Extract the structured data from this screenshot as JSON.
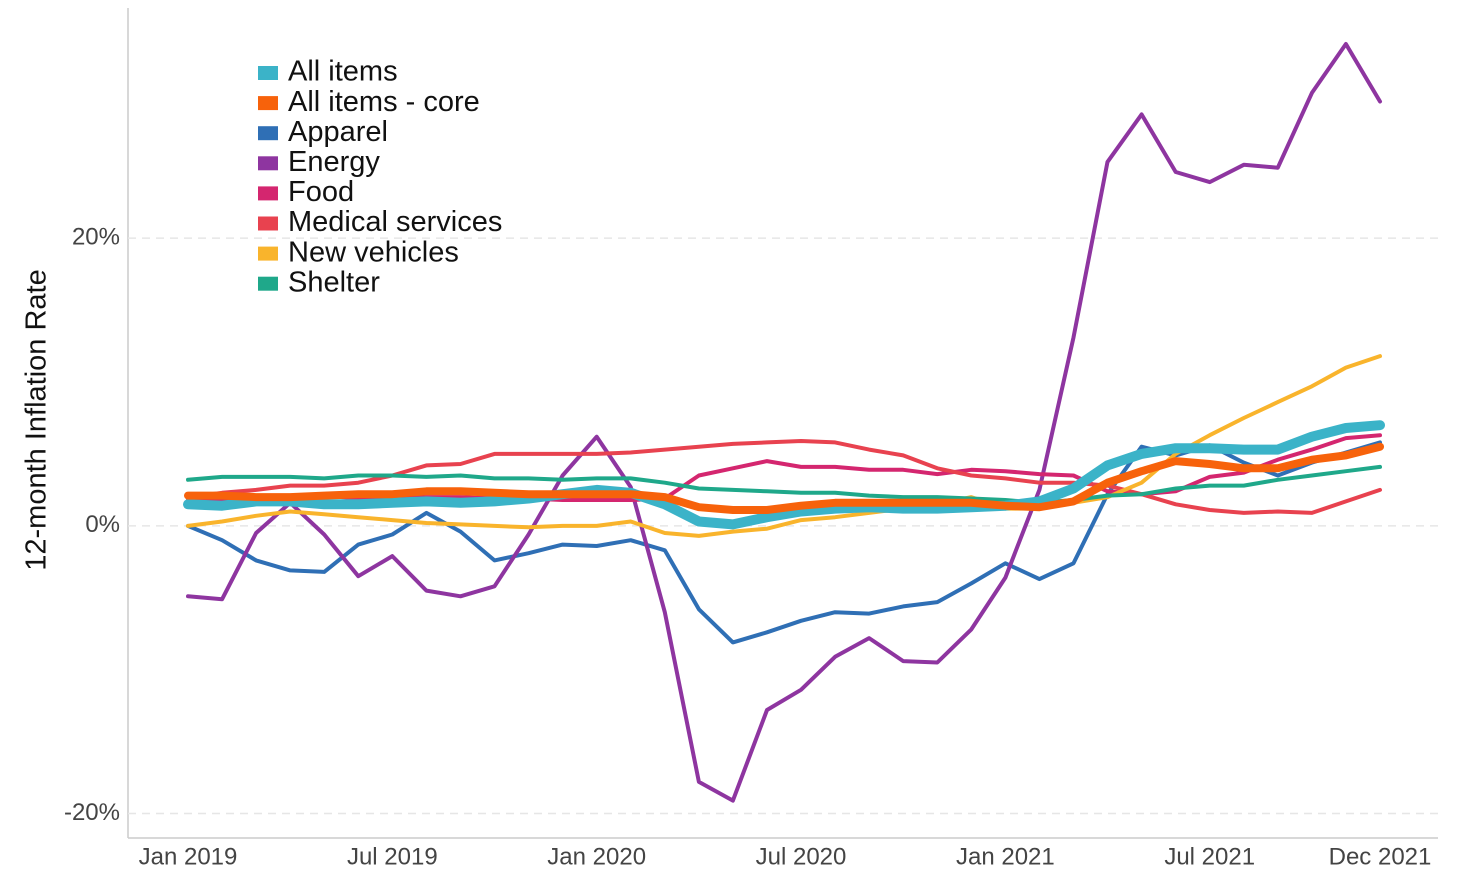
{
  "chart_data": {
    "type": "line",
    "y_label": "12-month Inflation Rate",
    "categories": [
      "Jan 2019",
      null,
      null,
      null,
      null,
      null,
      "Jul 2019",
      null,
      null,
      null,
      null,
      null,
      "Jan 2020",
      null,
      null,
      null,
      null,
      null,
      "Jul 2020",
      null,
      null,
      null,
      null,
      null,
      "Jan 2021",
      null,
      null,
      null,
      null,
      null,
      "Jul 2021",
      null,
      null,
      null,
      null,
      "Dec 2021"
    ],
    "series": [
      {
        "name": "All items",
        "color": "#3bb3c8",
        "values": [
          1.5,
          1.4,
          1.7,
          1.7,
          1.5,
          1.5,
          1.6,
          1.7,
          1.6,
          1.7,
          1.9,
          2.2,
          2.5,
          2.3,
          1.5,
          0.3,
          0.1,
          0.6,
          1.0,
          1.2,
          1.3,
          1.2,
          1.2,
          1.3,
          1.4,
          1.7,
          2.6,
          4.2,
          5.0,
          5.4,
          5.4,
          5.3,
          5.3,
          6.2,
          6.8,
          7.0
        ]
      },
      {
        "name": "All items - core",
        "color": "#f7620b",
        "values": [
          2.1,
          2.1,
          2.0,
          2.0,
          2.1,
          2.2,
          2.2,
          2.4,
          2.4,
          2.3,
          2.2,
          2.2,
          2.2,
          2.2,
          2.0,
          1.3,
          1.1,
          1.1,
          1.4,
          1.6,
          1.6,
          1.6,
          1.6,
          1.6,
          1.4,
          1.3,
          1.7,
          3.0,
          3.8,
          4.5,
          4.3,
          4.0,
          4.0,
          4.6,
          4.9,
          5.5
        ]
      },
      {
        "name": "Apparel",
        "color": "#2f6fb5",
        "values": [
          0.0,
          -1.0,
          -2.4,
          -3.1,
          -3.2,
          -1.3,
          -0.6,
          0.9,
          -0.4,
          -2.4,
          -1.9,
          -1.3,
          -1.4,
          -1.0,
          -1.7,
          -5.8,
          -8.1,
          -7.4,
          -6.6,
          -6.0,
          -6.1,
          -5.6,
          -5.3,
          -4.0,
          -2.6,
          -3.7,
          -2.6,
          2.2,
          5.5,
          4.9,
          5.6,
          4.4,
          3.5,
          4.4,
          5.1,
          5.8
        ]
      },
      {
        "name": "Energy",
        "color": "#8e35a0",
        "values": [
          -4.9,
          -5.1,
          -0.5,
          1.6,
          -0.6,
          -3.5,
          -2.1,
          -4.5,
          -4.9,
          -4.2,
          -0.6,
          3.5,
          6.2,
          2.7,
          -6.0,
          -17.8,
          -19.1,
          -12.8,
          -11.4,
          -9.1,
          -7.8,
          -9.4,
          -9.5,
          -7.2,
          -3.6,
          2.5,
          13.1,
          25.3,
          28.6,
          24.6,
          23.9,
          25.1,
          24.9,
          30.1,
          33.5,
          29.5
        ]
      },
      {
        "name": "Food",
        "color": "#d4266f",
        "values": [
          1.8,
          1.8,
          1.9,
          2.0,
          2.1,
          1.9,
          1.9,
          2.0,
          2.0,
          1.9,
          1.9,
          1.8,
          1.8,
          1.8,
          1.9,
          3.5,
          4.0,
          4.5,
          4.1,
          4.1,
          3.9,
          3.9,
          3.6,
          3.9,
          3.8,
          3.6,
          3.5,
          2.4,
          2.2,
          2.4,
          3.4,
          3.7,
          4.6,
          5.3,
          6.1,
          6.3
        ]
      },
      {
        "name": "Medical services",
        "color": "#e8424f",
        "values": [
          2.0,
          2.3,
          2.5,
          2.8,
          2.8,
          3.0,
          3.5,
          4.2,
          4.3,
          5.0,
          5.0,
          5.0,
          5.0,
          5.1,
          5.3,
          5.5,
          5.7,
          5.8,
          5.9,
          5.8,
          5.3,
          4.9,
          4.0,
          3.5,
          3.3,
          3.0,
          3.0,
          2.8,
          2.2,
          1.5,
          1.1,
          0.9,
          1.0,
          0.9,
          1.7,
          2.5
        ]
      },
      {
        "name": "New vehicles",
        "color": "#f9b42c",
        "values": [
          0.0,
          0.3,
          0.7,
          1.0,
          0.8,
          0.6,
          0.4,
          0.2,
          0.1,
          0.0,
          -0.1,
          0.0,
          0.0,
          0.3,
          -0.5,
          -0.7,
          -0.4,
          -0.2,
          0.4,
          0.6,
          0.9,
          1.2,
          1.5,
          2.0,
          1.2,
          1.2,
          1.6,
          2.0,
          3.0,
          5.0,
          6.3,
          7.5,
          8.6,
          9.7,
          11.0,
          11.8
        ]
      },
      {
        "name": "Shelter",
        "color": "#1fa88a",
        "values": [
          3.2,
          3.4,
          3.4,
          3.4,
          3.3,
          3.5,
          3.5,
          3.4,
          3.5,
          3.3,
          3.3,
          3.2,
          3.3,
          3.3,
          3.0,
          2.6,
          2.5,
          2.4,
          2.3,
          2.3,
          2.1,
          2.0,
          2.0,
          1.9,
          1.8,
          1.6,
          1.8,
          2.1,
          2.2,
          2.6,
          2.8,
          2.8,
          3.2,
          3.5,
          3.8,
          4.1
        ]
      }
    ],
    "ylim": [
      -21.7,
      36
    ],
    "yticks": [
      {
        "value": -20,
        "label": "-20%"
      },
      {
        "value": 0,
        "label": "0%"
      },
      {
        "value": 20,
        "label": "20%"
      }
    ],
    "grid": true,
    "legend": "top-left"
  }
}
